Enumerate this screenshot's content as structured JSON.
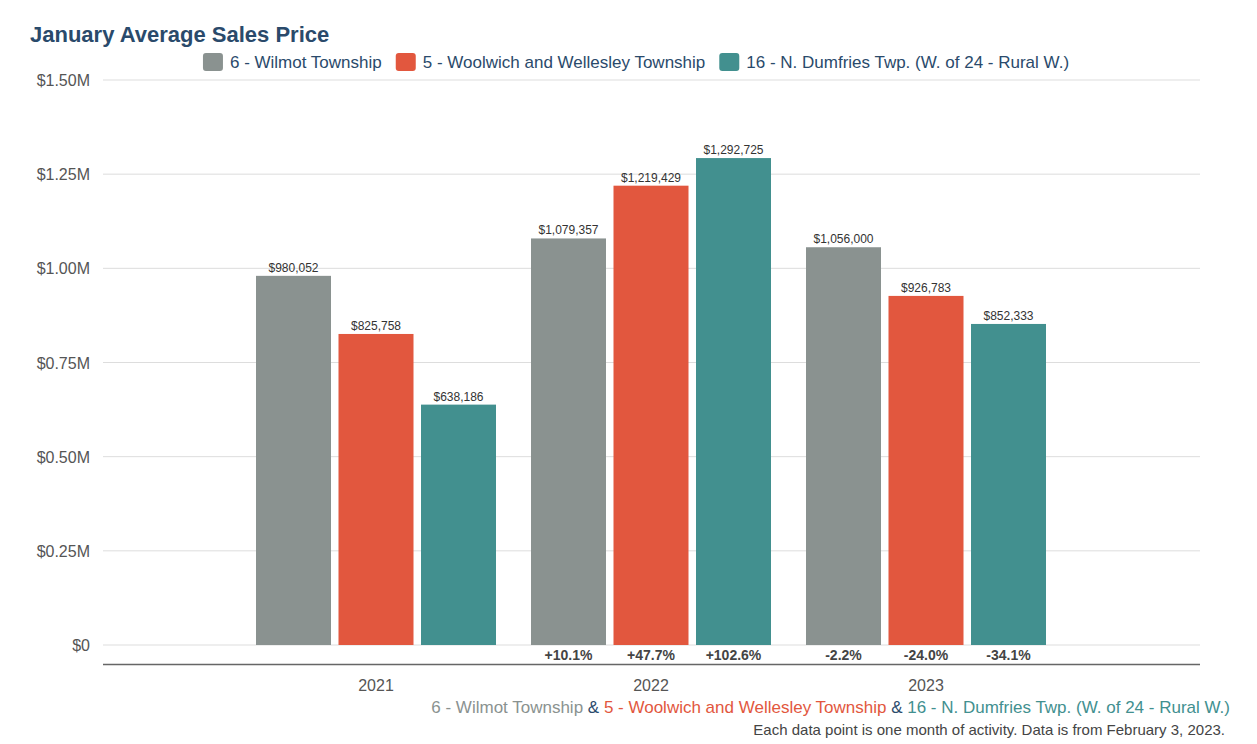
{
  "chart_data": {
    "type": "bar",
    "title": "January Average Sales Price",
    "categories": [
      "2021",
      "2022",
      "2023"
    ],
    "series": [
      {
        "name": "6 - Wilmot Township",
        "color": "#8a9290",
        "values": [
          980052,
          1079357,
          1056000
        ],
        "value_labels": [
          "$980,052",
          "$1,079,357",
          "$1,056,000"
        ],
        "changes": [
          null,
          10.1,
          -2.2
        ],
        "change_labels": [
          null,
          "+10.1%",
          "-2.2%"
        ]
      },
      {
        "name": "5 - Woolwich and Wellesley Township",
        "color": "#e2573e",
        "values": [
          825758,
          1219429,
          926783
        ],
        "value_labels": [
          "$825,758",
          "$1,219,429",
          "$926,783"
        ],
        "changes": [
          null,
          47.7,
          -24.0
        ],
        "change_labels": [
          null,
          "+47.7%",
          "-24.0%"
        ]
      },
      {
        "name": "16 - N. Dumfries Twp. (W. of 24 - Rural W.)",
        "color": "#42908f",
        "values": [
          638186,
          1292725,
          852333
        ],
        "value_labels": [
          "$638,186",
          "$1,292,725",
          "$852,333"
        ],
        "changes": [
          null,
          102.6,
          -34.1
        ],
        "change_labels": [
          null,
          "+102.6%",
          "-34.1%"
        ]
      }
    ],
    "ylim": [
      0,
      1500000
    ],
    "yticks": [
      {
        "value": 0,
        "label": "$0"
      },
      {
        "value": 250000,
        "label": "$0.25M"
      },
      {
        "value": 500000,
        "label": "$0.50M"
      },
      {
        "value": 750000,
        "label": "$0.75M"
      },
      {
        "value": 1000000,
        "label": "$1.00M"
      },
      {
        "value": 1250000,
        "label": "$1.25M"
      },
      {
        "value": 1500000,
        "label": "$1.50M"
      }
    ],
    "grid": true,
    "legend": "top",
    "data_labels": true,
    "caption_joiner": "&",
    "note": "Each data point is one month of activity. Data is from February 3, 2023."
  }
}
